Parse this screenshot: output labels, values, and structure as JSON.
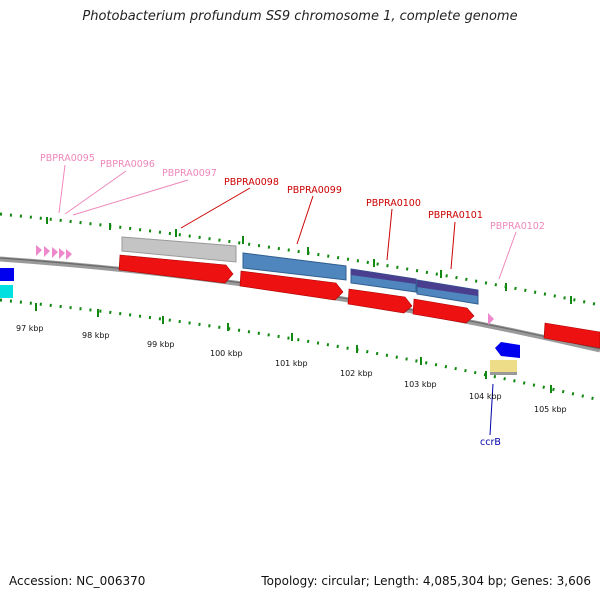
{
  "title": "Photobacterium profundum SS9 chromosome 1, complete genome",
  "accession": "Accession: NC_006370",
  "topology": "Topology: circular; Length: 4,085,304 bp; Genes: 3,606",
  "colors": {
    "cds": "#ee1111",
    "backbone": "#888888",
    "tick": "#118811",
    "gene_label_strong": "#cc0000",
    "gene_label_light": "#ee88bb",
    "ccrB_label": "#0000aa"
  },
  "genes": {
    "PBPRA0095": "PBPRA0095",
    "PBPRA0096": "PBPRA0096",
    "PBPRA0097": "PBPRA0097",
    "PBPRA0098": "PBPRA0098",
    "PBPRA0099": "PBPRA0099",
    "PBPRA0100": "PBPRA0100",
    "PBPRA0101": "PBPRA0101",
    "PBPRA0102": "PBPRA0102",
    "ccrB": "ccrB"
  },
  "kbp": {
    "k97": "97 kbp",
    "k98": "98 kbp",
    "k99": "99 kbp",
    "k100": "100 kbp",
    "k101": "101 kbp",
    "k102": "102 kbp",
    "k103": "103 kbp",
    "k104": "104 kbp",
    "k105": "105 kbp"
  }
}
